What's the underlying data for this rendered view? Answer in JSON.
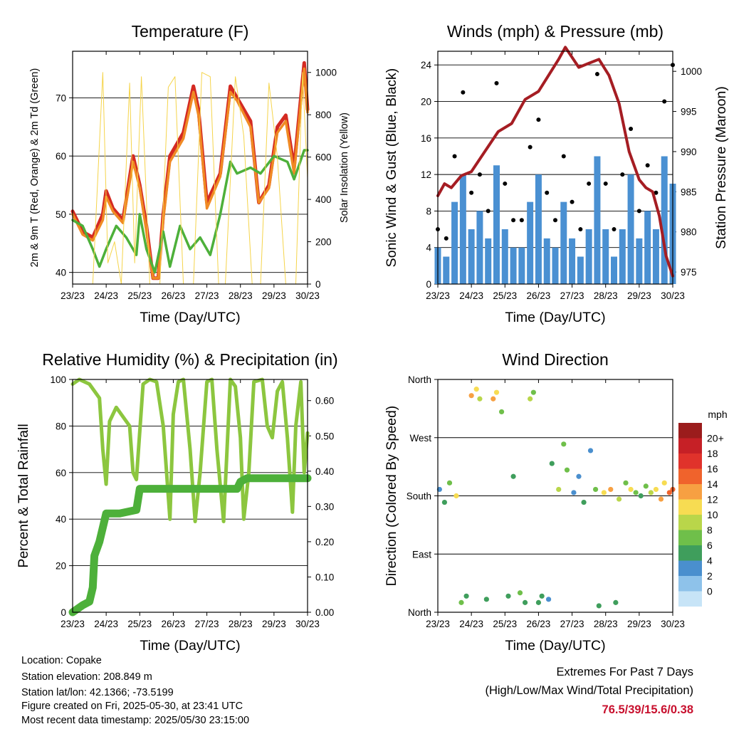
{
  "chart_data": [
    {
      "type": "line",
      "title": "Temperature (F)",
      "xlabel": "Time (Day/UTC)",
      "ylabel_left": "2m & 9m T (Red, Orange) & 2m Td (Green)",
      "ylabel_right": "Solar Insolation (Yellow)",
      "xticks": [
        "23/23",
        "24/23",
        "25/23",
        "26/23",
        "27/23",
        "28/23",
        "29/23",
        "30/23"
      ],
      "xlim": [
        0,
        7
      ],
      "ylim_left": [
        38,
        78
      ],
      "ylim_right": [
        0,
        1100
      ],
      "yticks_left": [
        40,
        50,
        60,
        70
      ],
      "yticks_right": [
        0,
        200,
        400,
        600,
        800,
        1000
      ],
      "grid": "horizontal",
      "series": [
        {
          "name": "2m T",
          "color": "#d42a22",
          "axis": "left",
          "x": [
            0,
            0.3,
            0.6,
            0.9,
            1.0,
            1.2,
            1.5,
            1.8,
            2.0,
            2.2,
            2.4,
            2.55,
            2.7,
            2.9,
            3.3,
            3.6,
            3.75,
            4.0,
            4.4,
            4.7,
            4.9,
            5.3,
            5.55,
            5.85,
            6.1,
            6.35,
            6.6,
            6.9,
            7.0
          ],
          "y": [
            50.5,
            47,
            46,
            50,
            54,
            51,
            49,
            60,
            55,
            48,
            39,
            39,
            50,
            60,
            64,
            72,
            68,
            52,
            57,
            72,
            70,
            66,
            52,
            55,
            65,
            67,
            58,
            76,
            68
          ]
        },
        {
          "name": "9m T",
          "color": "#f08a24",
          "axis": "left",
          "x": [
            0,
            0.3,
            0.6,
            0.9,
            1.0,
            1.2,
            1.5,
            1.8,
            2.0,
            2.2,
            2.4,
            2.55,
            2.7,
            2.9,
            3.3,
            3.6,
            3.75,
            4.0,
            4.4,
            4.7,
            4.9,
            5.3,
            5.55,
            5.85,
            6.1,
            6.35,
            6.6,
            6.9,
            7.0
          ],
          "y": [
            50,
            46.5,
            45.5,
            49,
            53,
            50.5,
            48.5,
            59,
            54.5,
            47,
            39,
            39,
            49,
            59,
            63,
            71,
            67,
            51,
            56.5,
            71,
            69.5,
            65,
            52,
            54.5,
            64,
            66,
            57,
            75,
            67.5
          ]
        },
        {
          "name": "2m Td",
          "color": "#4db03a",
          "axis": "left",
          "x": [
            0,
            0.3,
            0.6,
            0.8,
            1.0,
            1.3,
            1.6,
            1.9,
            2.0,
            2.2,
            2.45,
            2.7,
            2.9,
            3.2,
            3.5,
            3.8,
            4.1,
            4.4,
            4.7,
            4.9,
            5.3,
            5.6,
            6.0,
            6.4,
            6.6,
            6.9,
            7.0
          ],
          "y": [
            49,
            48,
            44,
            41,
            44,
            48,
            46,
            43,
            50,
            44,
            40,
            47,
            41,
            48,
            44,
            46,
            43,
            50,
            59,
            57,
            58,
            57,
            60,
            59,
            56,
            61,
            61
          ]
        },
        {
          "name": "Solar Insolation",
          "color": "#f5d44b",
          "axis": "right",
          "x": [
            0.6,
            0.9,
            1.05,
            1.25,
            1.45,
            1.7,
            1.85,
            2.05,
            2.3,
            2.6,
            2.85,
            3.05,
            3.3,
            3.6,
            3.85,
            4.1,
            4.35,
            4.55,
            4.85,
            5.1,
            5.35,
            5.6,
            5.85,
            6.1,
            6.35,
            6.65,
            6.85,
            7.0
          ],
          "y": [
            0,
            1000,
            100,
            200,
            0,
            950,
            100,
            980,
            0,
            0,
            930,
            980,
            0,
            0,
            1000,
            980,
            0,
            0,
            980,
            700,
            0,
            0,
            950,
            600,
            0,
            0,
            1000,
            500
          ]
        }
      ]
    },
    {
      "type": "scatter",
      "title": "Winds (mph) & Pressure (mb)",
      "xlabel": "Time (Day/UTC)",
      "ylabel_left": "Sonic Wind & Gust (Blue, Black)",
      "ylabel_right": "Station Pressure (Maroon)",
      "xticks": [
        "23/23",
        "24/23",
        "25/23",
        "26/23",
        "27/23",
        "28/23",
        "29/23",
        "30/23"
      ],
      "xlim": [
        0,
        7
      ],
      "ylim_left": [
        0,
        25.5
      ],
      "ylim_right": [
        973.5,
        1002.5
      ],
      "yticks_left": [
        0,
        4,
        8,
        12,
        16,
        20,
        24
      ],
      "yticks_right": [
        975,
        980,
        985,
        990,
        995,
        1000
      ],
      "grid": "horizontal",
      "series": [
        {
          "name": "Sonic Wind",
          "color": "#4a90d2",
          "axis": "left",
          "style": "bars",
          "x": [
            0.0,
            0.25,
            0.5,
            0.75,
            1.0,
            1.25,
            1.5,
            1.75,
            2.0,
            2.25,
            2.5,
            2.75,
            3.0,
            3.25,
            3.5,
            3.75,
            4.0,
            4.25,
            4.5,
            4.75,
            5.0,
            5.25,
            5.5,
            5.75,
            6.0,
            6.25,
            6.5,
            6.75,
            7.0
          ],
          "y": [
            4,
            3,
            9,
            12,
            6,
            8,
            5,
            13,
            6,
            4,
            4,
            9,
            12,
            5,
            4,
            9,
            5,
            3,
            6,
            14,
            6,
            3,
            6,
            12,
            5,
            8,
            6,
            14,
            11
          ]
        },
        {
          "name": "Gust",
          "color": "#000000",
          "axis": "left",
          "style": "dots",
          "x": [
            0.0,
            0.25,
            0.5,
            0.75,
            1.0,
            1.25,
            1.5,
            1.75,
            2.0,
            2.25,
            2.5,
            2.75,
            3.0,
            3.25,
            3.5,
            3.75,
            4.0,
            4.25,
            4.5,
            4.75,
            5.0,
            5.25,
            5.5,
            5.75,
            6.0,
            6.25,
            6.5,
            6.75,
            7.0
          ],
          "y": [
            6,
            5,
            14,
            21,
            10,
            12,
            8,
            22,
            11,
            7,
            7,
            15,
            18,
            10,
            7,
            14,
            9,
            6,
            11,
            23,
            11,
            6,
            12,
            17,
            8,
            13,
            10,
            20,
            24
          ]
        },
        {
          "name": "Station Pressure",
          "color": "#a51d23",
          "axis": "right",
          "x": [
            0,
            0.2,
            0.4,
            0.7,
            1.0,
            1.4,
            1.8,
            2.2,
            2.6,
            3.0,
            3.3,
            3.6,
            3.8,
            4.2,
            4.5,
            4.8,
            5.1,
            5.4,
            5.7,
            6.0,
            6.2,
            6.4,
            6.6,
            6.8,
            7.0
          ],
          "y": [
            984.5,
            986,
            985.5,
            987,
            987.5,
            990,
            992.5,
            993.5,
            996.5,
            997.5,
            999.5,
            1001.5,
            1003,
            1000.5,
            1001,
            1001.5,
            999.5,
            996,
            990,
            986.5,
            985.5,
            985,
            982,
            977,
            974.5
          ]
        }
      ]
    },
    {
      "type": "line",
      "title": "Relative Humidity (%) & Precipitation (in)",
      "xlabel": "Time (Day/UTC)",
      "ylabel_left": "Percent & Total Rainfall",
      "xticks": [
        "23/23",
        "24/23",
        "25/23",
        "26/23",
        "27/23",
        "28/23",
        "29/23",
        "30/23"
      ],
      "xlim": [
        0,
        7
      ],
      "ylim_left": [
        0,
        100
      ],
      "ylim_right": [
        0,
        0.66
      ],
      "yticks_left": [
        0,
        20,
        40,
        60,
        80,
        100
      ],
      "yticks_right": [
        "0.00",
        "0.10",
        "0.20",
        "0.30",
        "0.40",
        "0.50",
        "0.60"
      ],
      "grid": "horizontal",
      "series": [
        {
          "name": "Relative Humidity",
          "color": "#8cc63f",
          "axis": "left",
          "x": [
            0,
            0.2,
            0.5,
            0.8,
            0.9,
            1.0,
            1.1,
            1.3,
            1.5,
            1.7,
            1.8,
            1.9,
            2.1,
            2.3,
            2.5,
            2.7,
            2.9,
            3.0,
            3.15,
            3.3,
            3.5,
            3.65,
            3.8,
            4.0,
            4.15,
            4.3,
            4.5,
            4.7,
            4.85,
            5.0,
            5.1,
            5.25,
            5.4,
            5.65,
            5.8,
            5.95,
            6.1,
            6.25,
            6.4,
            6.55,
            6.65,
            6.8,
            6.9,
            7.0
          ],
          "y": [
            98,
            100,
            98,
            92,
            70,
            55,
            82,
            88,
            84,
            80,
            60,
            57,
            98,
            100,
            99,
            80,
            40,
            85,
            99,
            100,
            70,
            39,
            60,
            99,
            100,
            70,
            39,
            100,
            97,
            75,
            40,
            60,
            99,
            100,
            80,
            75,
            95,
            99,
            75,
            43,
            80,
            99,
            60,
            77
          ]
        },
        {
          "name": "Total Rainfall",
          "color": "#4db03a",
          "axis": "right",
          "x": [
            0,
            0.3,
            0.5,
            0.6,
            0.65,
            0.8,
            0.9,
            1.0,
            1.4,
            1.9,
            2.0,
            4.9,
            5.0,
            5.2,
            7.0
          ],
          "y": [
            0.0,
            0.02,
            0.03,
            0.07,
            0.16,
            0.2,
            0.24,
            0.28,
            0.28,
            0.29,
            0.35,
            0.35,
            0.37,
            0.38,
            0.38
          ]
        }
      ]
    },
    {
      "type": "scatter",
      "title": "Wind Direction",
      "xlabel": "Time (Day/UTC)",
      "ylabel_left": "Direction (Colored By Speed)",
      "xticks": [
        "23/23",
        "24/23",
        "25/23",
        "26/23",
        "27/23",
        "28/23",
        "29/23",
        "30/23"
      ],
      "xlim": [
        0,
        7
      ],
      "ylim_left": [
        0,
        360
      ],
      "yticks_left": [
        "North",
        "East",
        "South",
        "West",
        "North"
      ],
      "grid": "horizontal",
      "colorbar": {
        "title": "mph",
        "labels": [
          "20+",
          "18",
          "16",
          "14",
          "12",
          "10",
          "8",
          "6",
          "4",
          "2",
          "0"
        ],
        "colors": [
          "#9b1c1c",
          "#c62026",
          "#e0322b",
          "#f0632c",
          "#f7a042",
          "#f7dc52",
          "#b9d64a",
          "#6fbf4a",
          "#3f9e5c",
          "#4a8fce",
          "#8ec2ea",
          "#c7e4f7"
        ]
      },
      "series": [
        {
          "name": "Direction",
          "axis": "left",
          "x": [
            0.05,
            0.2,
            0.35,
            0.55,
            0.7,
            0.85,
            1.0,
            1.15,
            1.25,
            1.45,
            1.65,
            1.75,
            1.9,
            2.1,
            2.25,
            2.45,
            2.6,
            2.75,
            2.85,
            3.0,
            3.1,
            3.3,
            3.4,
            3.6,
            3.75,
            3.85,
            4.05,
            4.2,
            4.35,
            4.55,
            4.7,
            4.8,
            4.95,
            5.15,
            5.3,
            5.4,
            5.6,
            5.75,
            5.9,
            6.05,
            6.2,
            6.35,
            6.5,
            6.65,
            6.75,
            6.9,
            7.0
          ],
          "y": [
            190,
            170,
            200,
            180,
            15,
            25,
            335,
            345,
            330,
            20,
            330,
            340,
            310,
            25,
            210,
            30,
            15,
            330,
            340,
            15,
            25,
            20,
            230,
            190,
            260,
            220,
            185,
            210,
            170,
            250,
            190,
            10,
            185,
            190,
            15,
            175,
            200,
            190,
            185,
            180,
            195,
            185,
            190,
            175,
            200,
            185,
            190
          ],
          "speed": [
            2,
            4,
            6,
            10,
            6,
            4,
            12,
            10,
            8,
            4,
            13,
            11,
            6,
            4,
            4,
            6,
            4,
            8,
            6,
            4,
            4,
            2,
            4,
            8,
            6,
            6,
            2,
            2,
            4,
            2,
            6,
            4,
            10,
            12,
            4,
            8,
            6,
            10,
            6,
            4,
            6,
            8,
            10,
            12,
            10,
            14,
            14
          ]
        }
      ]
    }
  ],
  "info": {
    "location": "Location: Copake",
    "elevation": "Station elevation: 208.849 m",
    "latlon": "Station lat/lon: 42.1366; -73.5199",
    "created": "Figure created on Fri, 2025-05-30, at 23:41 UTC",
    "recent": "Most recent data timestamp: 2025/05/30 23:15:00"
  },
  "extremes": {
    "line1": "Extremes For Past 7 Days",
    "line2": "(High/Low/Max Wind/Total Precipitation)",
    "values": "76.5/39/15.6/0.38"
  }
}
